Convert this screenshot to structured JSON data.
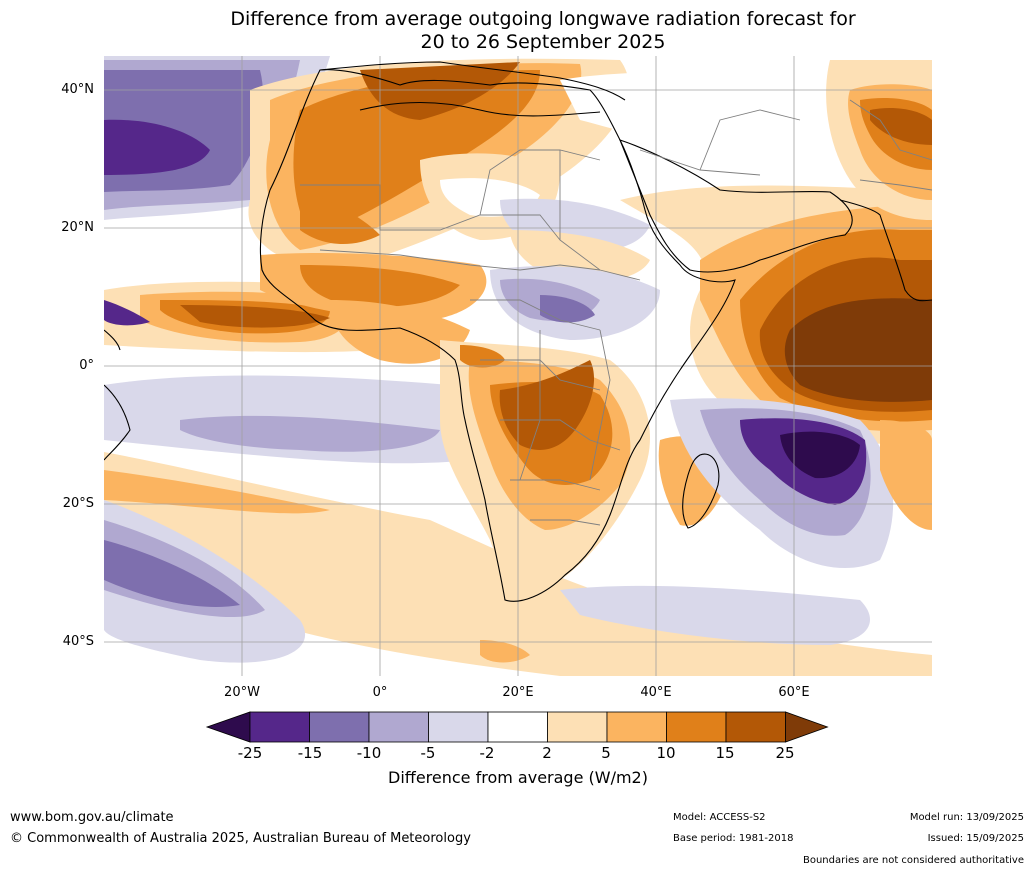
{
  "title": {
    "line1": "Difference from average outgoing longwave radiation forecast for",
    "line2": "20 to 26 September 2025"
  },
  "map": {
    "lat_labels": [
      "40°N",
      "20°N",
      "0°",
      "20°S",
      "40°S"
    ],
    "lon_labels": [
      "20°W",
      "0°",
      "20°E",
      "40°E",
      "60°E"
    ]
  },
  "colorbar": {
    "ticks": [
      "-25",
      "-15",
      "-10",
      "-5",
      "-2",
      "2",
      "5",
      "10",
      "15",
      "25"
    ],
    "colors": [
      "#2e0b4d",
      "#55278a",
      "#7e6fae",
      "#b0a8d0",
      "#d9d8ea",
      "#ffffff",
      "#fde0b5",
      "#fbb460",
      "#e0801a",
      "#b35806",
      "#7f3b08"
    ],
    "label": "Difference from average (W/m2)"
  },
  "footer": {
    "website": "www.bom.gov.au/climate",
    "copyright": "© Commonwealth of Australia 2025, Australian Bureau of Meteorology",
    "model": "Model: ACCESS-S2",
    "base_period": "Base period: 1981-2018",
    "model_run": "Model run: 13/09/2025",
    "issued": "Issued: 15/09/2025",
    "disclaimer": "Boundaries are not considered authoritative"
  }
}
